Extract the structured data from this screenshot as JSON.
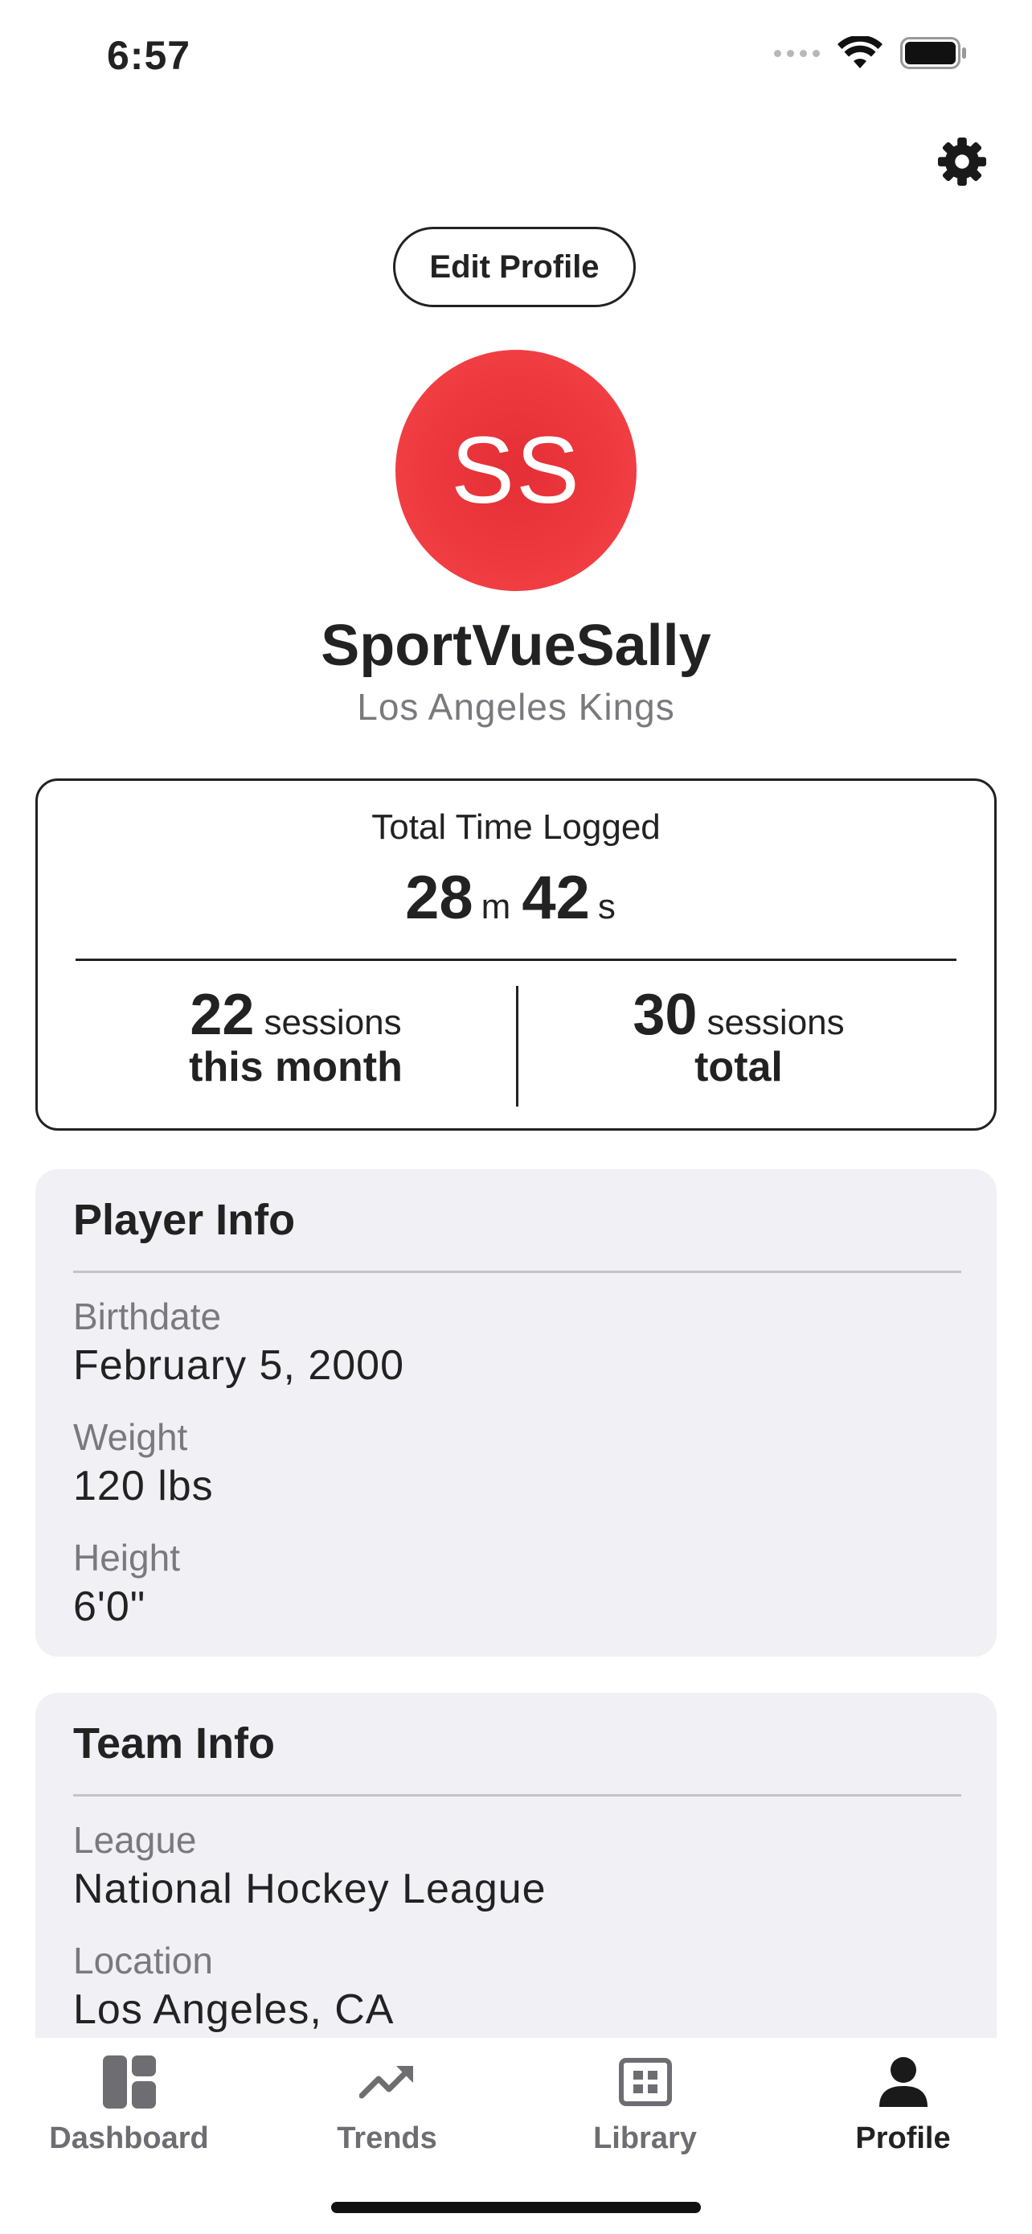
{
  "status_bar": {
    "time": "6:57",
    "icons": [
      "signal-icon",
      "wifi-icon",
      "battery-icon"
    ]
  },
  "header": {
    "settings_icon": "gear-icon",
    "edit_profile_label": "Edit Profile"
  },
  "profile": {
    "initials": "SS",
    "avatar_color": "#ee3a3f",
    "username": "SportVueSally",
    "team": "Los Angeles Kings"
  },
  "stats": {
    "title": "Total Time Logged",
    "minutes": "28",
    "minutes_unit": "m",
    "seconds": "42",
    "seconds_unit": "s",
    "month_count": "22",
    "month_unit": "sessions",
    "month_label": "this month",
    "total_count": "30",
    "total_unit": "sessions",
    "total_label": "total"
  },
  "player_info": {
    "title": "Player Info",
    "fields": [
      {
        "label": "Birthdate",
        "value": "February 5, 2000"
      },
      {
        "label": "Weight",
        "value": "120 lbs"
      },
      {
        "label": "Height",
        "value": "6'0\""
      }
    ]
  },
  "team_info": {
    "title": "Team Info",
    "fields": [
      {
        "label": "League",
        "value": "National Hockey League"
      },
      {
        "label": "Location",
        "value": "Los Angeles, CA"
      }
    ]
  },
  "tab_bar": {
    "tabs": [
      {
        "label": "Dashboard",
        "icon": "dashboard-icon",
        "active": false
      },
      {
        "label": "Trends",
        "icon": "trends-icon",
        "active": false
      },
      {
        "label": "Library",
        "icon": "library-icon",
        "active": false
      },
      {
        "label": "Profile",
        "icon": "profile-icon",
        "active": true
      }
    ]
  }
}
